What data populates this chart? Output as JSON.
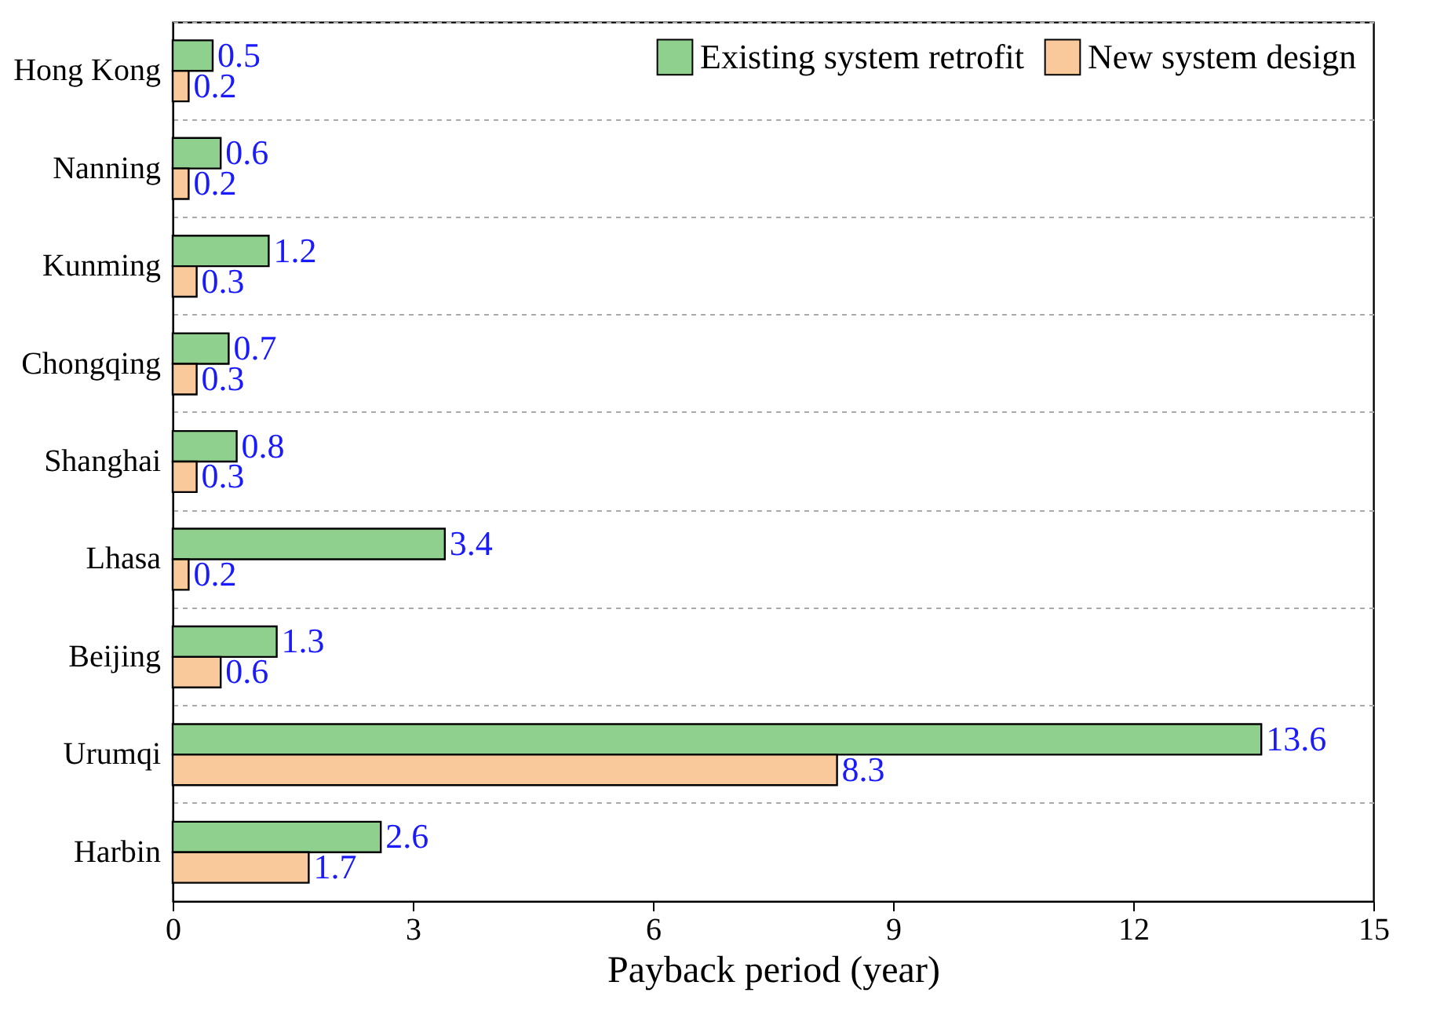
{
  "chart_data": {
    "type": "bar",
    "orientation": "horizontal",
    "xlabel": "Payback period (year)",
    "categories": [
      "Hong Kong",
      "Nanning",
      "Kunming",
      "Chongqing",
      "Shanghai",
      "Lhasa",
      "Beijing",
      "Urumqi",
      "Harbin"
    ],
    "series": [
      {
        "name": "Existing system retrofit",
        "color": "#8fd08f",
        "values": [
          0.5,
          0.6,
          1.2,
          0.7,
          0.8,
          3.4,
          1.3,
          13.6,
          2.6
        ]
      },
      {
        "name": "New system design",
        "color": "#f9c89b",
        "values": [
          0.2,
          0.2,
          0.3,
          0.3,
          0.3,
          0.2,
          0.6,
          8.3,
          1.7
        ]
      }
    ],
    "xlim": [
      0,
      15
    ],
    "xticks": [
      0,
      3,
      6,
      9,
      12,
      15
    ],
    "grid": "y",
    "legend": "top right",
    "data_labels": true
  }
}
